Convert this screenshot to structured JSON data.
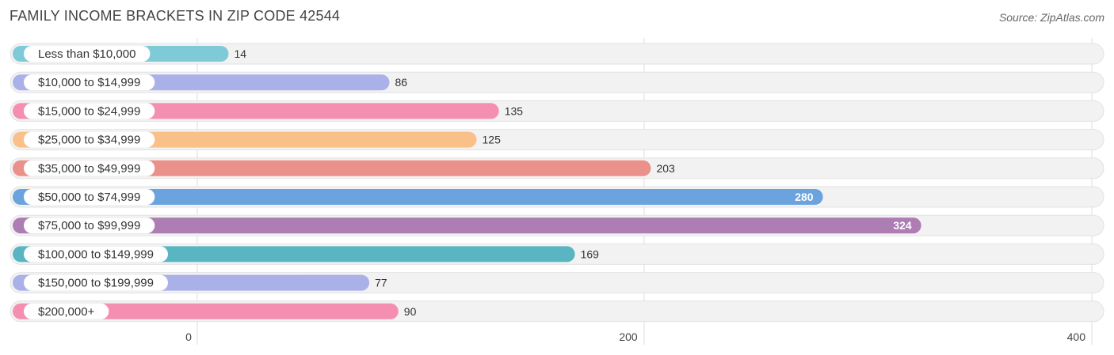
{
  "chart_data": {
    "type": "bar",
    "orientation": "horizontal",
    "title": "FAMILY INCOME BRACKETS IN ZIP CODE 42544",
    "source": "Source: ZipAtlas.com",
    "categories": [
      "Less than $10,000",
      "$10,000 to $14,999",
      "$15,000 to $24,999",
      "$25,000 to $34,999",
      "$35,000 to $49,999",
      "$50,000 to $74,999",
      "$75,000 to $99,999",
      "$100,000 to $149,999",
      "$150,000 to $199,999",
      "$200,000+"
    ],
    "values": [
      14,
      86,
      135,
      125,
      203,
      280,
      324,
      169,
      77,
      90
    ],
    "colors": [
      "#7ecad6",
      "#aab0e8",
      "#f48fb1",
      "#f9c089",
      "#e9918a",
      "#6aa3de",
      "#ae7db3",
      "#58b5c1",
      "#aab0e8",
      "#f48fb1"
    ],
    "xlim": [
      0,
      400
    ],
    "xticks": [
      0,
      200,
      400
    ],
    "xtick_labels": [
      "0",
      "200",
      "400"
    ],
    "grid": true
  }
}
